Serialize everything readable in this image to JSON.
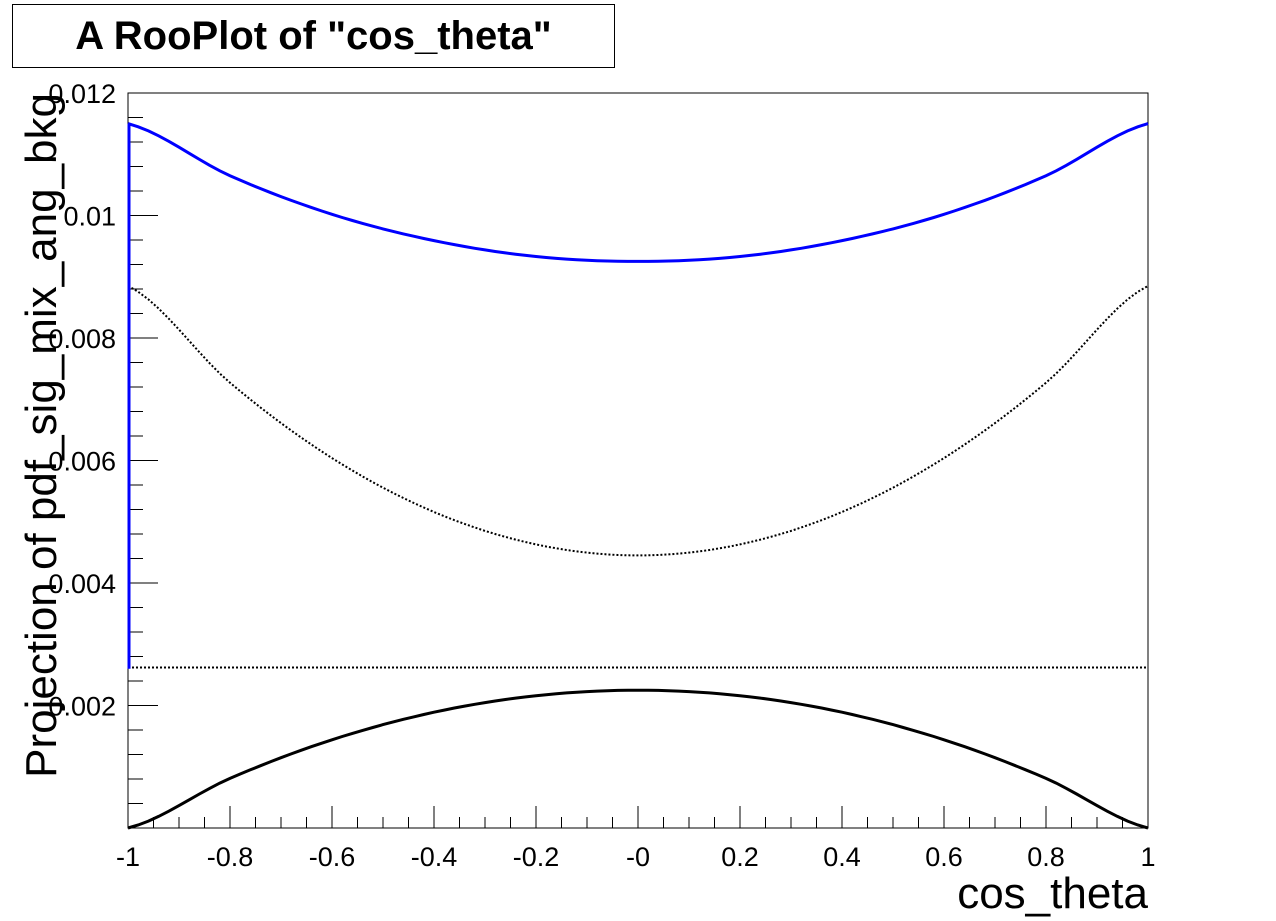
{
  "chart_data": {
    "type": "line",
    "title": "A RooPlot of \"cos_theta\"",
    "xlabel": "cos_theta",
    "ylabel": "Projection of pdf_sig_mix_ang_bkg",
    "xlim": [
      -1,
      1
    ],
    "ylim": [
      0,
      0.012
    ],
    "x_ticks": [
      "-1",
      "-0.8",
      "-0.6",
      "-0.4",
      "-0.2",
      "-0",
      "0.2",
      "0.4",
      "0.6",
      "0.8",
      "1"
    ],
    "y_ticks": [
      "0.002",
      "0.004",
      "0.006",
      "0.008",
      "0.01",
      "0.012"
    ],
    "grid": false,
    "legend": "none",
    "x": [
      -1,
      -0.8,
      -0.6,
      -0.4,
      -0.2,
      0,
      0.2,
      0.4,
      0.6,
      0.8,
      1
    ],
    "series": [
      {
        "color": "#0000ff",
        "style": "solid",
        "values": [
          0.0115,
          0.01065,
          0.01002,
          0.00959,
          0.00933,
          0.00925,
          0.00933,
          0.00959,
          0.01002,
          0.01065,
          0.0115
        ]
      },
      {
        "color": "#000000",
        "style": "dotted",
        "values": [
          0.00885,
          0.00727,
          0.00604,
          0.00516,
          0.00463,
          0.00445,
          0.00463,
          0.00516,
          0.00604,
          0.00727,
          0.00885
        ]
      },
      {
        "color": "#000000",
        "style": "dotted",
        "values": [
          0.00262,
          0.00262,
          0.00262,
          0.00262,
          0.00262,
          0.00262,
          0.00262,
          0.00262,
          0.00262,
          0.00262,
          0.00262
        ]
      },
      {
        "color": "#000000",
        "style": "solid",
        "values": [
          0.0,
          0.00081,
          0.00144,
          0.00189,
          0.00216,
          0.00225,
          0.00216,
          0.00189,
          0.00144,
          0.00081,
          0.0
        ]
      }
    ]
  }
}
